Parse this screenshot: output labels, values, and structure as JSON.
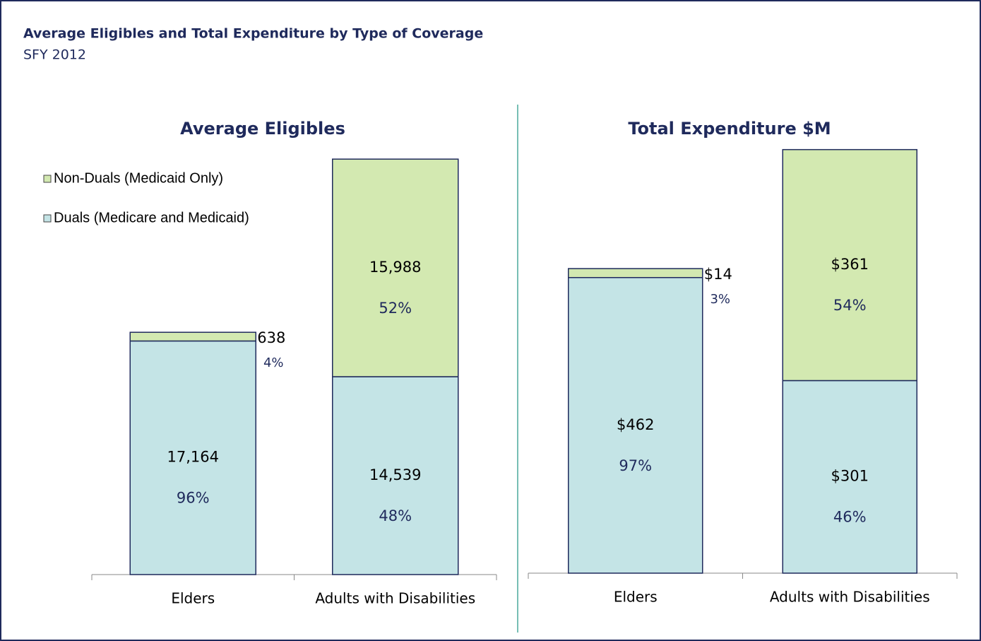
{
  "header": {
    "title": "Average Eligibles and Total Expenditure by Type of Coverage",
    "subtitle": "SFY 2012"
  },
  "chart_data": [
    {
      "type": "bar",
      "stacked": true,
      "title": "Average Eligibles",
      "categories": [
        "Elders",
        "Adults with Disabilities"
      ],
      "ylim": [
        0,
        35000
      ],
      "legend": "upper left",
      "series": [
        {
          "name": "Duals (Medicare and Medicaid)",
          "color": "#c4e4e6",
          "values": [
            17164,
            14539
          ],
          "value_labels": [
            "17,164",
            "14,539"
          ],
          "shares": [
            96,
            48
          ],
          "share_labels": [
            "96%",
            "48%"
          ]
        },
        {
          "name": "Non-Duals (Medicaid Only)",
          "color": "#d3e9b1",
          "values": [
            638,
            15988
          ],
          "value_labels": [
            "638",
            "15,988"
          ],
          "shares": [
            4,
            52
          ],
          "share_labels": [
            "4%",
            "52%"
          ]
        }
      ]
    },
    {
      "type": "bar",
      "stacked": true,
      "title": "Total Expenditure  $M",
      "categories": [
        "Elders",
        "Adults with Disabilities"
      ],
      "ylim": [
        0,
        750
      ],
      "series": [
        {
          "color": "#c4e4e6",
          "values": [
            462,
            301
          ],
          "value_labels": [
            "$462",
            "$301"
          ],
          "shares": [
            97,
            46
          ],
          "share_labels": [
            "97%",
            "46%"
          ]
        },
        {
          "color": "#d3e9b1",
          "values": [
            14,
            361
          ],
          "value_labels": [
            "$14",
            "$361"
          ],
          "shares": [
            3,
            54
          ],
          "share_labels": [
            "3%",
            "54%"
          ]
        }
      ]
    }
  ]
}
